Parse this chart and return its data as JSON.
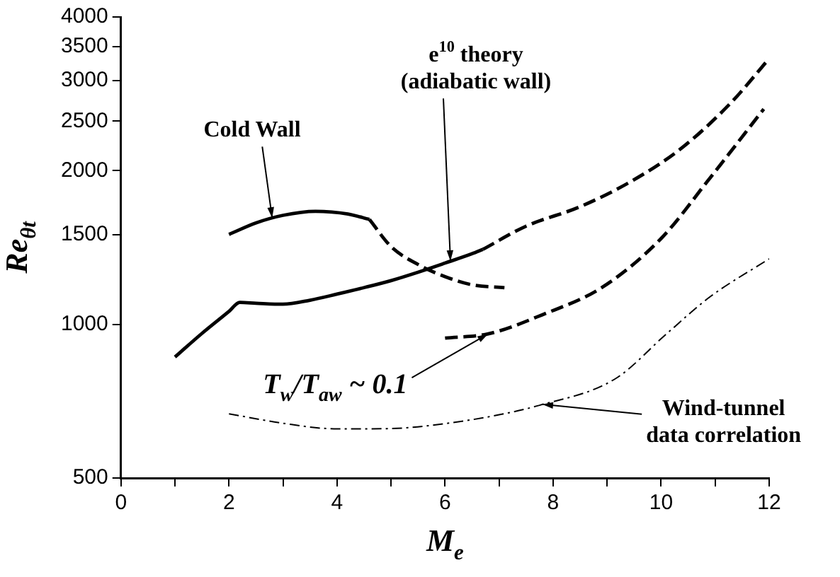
{
  "chart_data": {
    "type": "line",
    "xlabel": "M$_{e}$",
    "ylabel": "Re$_{θt}$",
    "log": "y",
    "xlim": [
      0,
      12
    ],
    "ylim": [
      500,
      4000
    ],
    "xticks": [
      0,
      {
        "value": 1,
        "label": null
      },
      2,
      {
        "value": 3,
        "label": null
      },
      4,
      {
        "value": 5,
        "label": null
      },
      6,
      {
        "value": 7,
        "label": null
      },
      8,
      {
        "value": 9,
        "label": null
      },
      10,
      {
        "value": 11,
        "label": null
      },
      12
    ],
    "yticks": [
      500,
      1000,
      1500,
      2000,
      2500,
      3000,
      3500,
      4000
    ],
    "grid": false,
    "legend": false,
    "marker": "none",
    "series": [
      {
        "color": "#000000",
        "line_style": "solid",
        "x": [
          1,
          1.5,
          2,
          2.2,
          2.5,
          3,
          3.5,
          4,
          4.5,
          5,
          5.5,
          6,
          6.5,
          6.7
        ],
        "values": [
          863,
          960,
          1060,
          1104,
          1100,
          1095,
          1115,
          1146,
          1180,
          1218,
          1265,
          1318,
          1375,
          1402
        ]
      },
      {
        "color": "#000000",
        "line_style": "dashed",
        "x": [
          6.7,
          7.5,
          8.5,
          9.5,
          10.4,
          11.3,
          12
        ],
        "values": [
          1402,
          1557,
          1700,
          1920,
          2223,
          2722,
          3316
        ]
      },
      {
        "color": "#000000",
        "line_style": "solid",
        "x": [
          2,
          2.5,
          3,
          3.6,
          4.2,
          4.6
        ],
        "values": [
          1500,
          1580,
          1635,
          1665,
          1645,
          1605
        ]
      },
      {
        "color": "#000000",
        "line_style": "dashed",
        "x": [
          4.6,
          5,
          5.5,
          6,
          6.5,
          7.1
        ],
        "values": [
          1605,
          1420,
          1310,
          1240,
          1195,
          1180
        ]
      },
      {
        "color": "#000000",
        "line_style": "dashed",
        "x": [
          6,
          6.8,
          7.8,
          8.9,
          10,
          10.9,
          11.9
        ],
        "values": [
          940,
          958,
          1044,
          1180,
          1473,
          1932,
          2641
        ]
      },
      {
        "color": "#000000",
        "line_style": "dotted",
        "x": [
          2,
          3,
          4,
          5,
          6,
          7,
          7.7,
          9.15,
          10.1,
          10.9,
          12
        ],
        "values": [
          668,
          640,
          624,
          625,
          639,
          665,
          692,
          782,
          958,
          1131,
          1344
        ]
      }
    ],
    "annotations": [
      {
        "text": "Cold Wall",
        "x": 2.8,
        "y": 1615
      },
      {
        "text": "e$^{10}$ theory\n(adiabatic wall)",
        "x": 6.1,
        "y": 1330
      },
      {
        "text": "T$_{w}$/T$_{aw}$ ~ 0.1",
        "x": 6.8,
        "y": 958
      },
      {
        "text": "Wind-tunnel\ndata correlation",
        "x": 7.8,
        "y": 697
      }
    ]
  }
}
